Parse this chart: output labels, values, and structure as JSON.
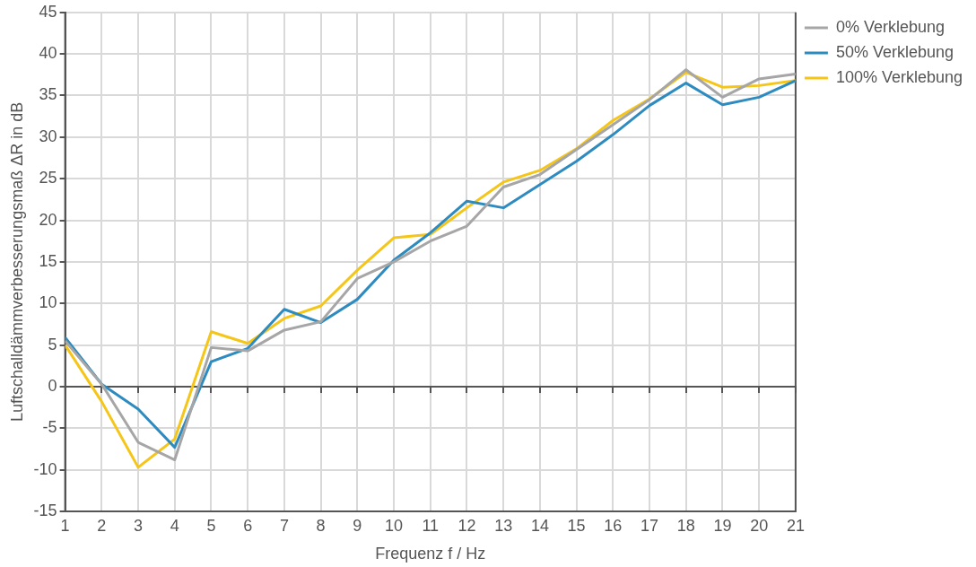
{
  "chart_data": {
    "type": "line",
    "xlabel": "Frequenz f / Hz",
    "ylabel": "Luftschalldämmverbesserungsmaß ΔR in dB",
    "x": [
      1,
      2,
      3,
      4,
      5,
      6,
      7,
      8,
      9,
      10,
      11,
      12,
      13,
      14,
      15,
      16,
      17,
      18,
      19,
      20,
      21
    ],
    "xlim": [
      1,
      21
    ],
    "xticks": [
      1,
      2,
      3,
      4,
      5,
      6,
      7,
      8,
      9,
      10,
      11,
      12,
      13,
      14,
      15,
      16,
      17,
      18,
      19,
      20,
      21
    ],
    "ylim": [
      -15,
      45
    ],
    "yticks": [
      -15,
      -10,
      -5,
      0,
      5,
      10,
      15,
      20,
      25,
      30,
      35,
      40,
      45
    ],
    "grid": true,
    "legend": "right",
    "marker": "none",
    "line_style": "solid",
    "series": [
      {
        "name": "0% Verklebung",
        "color": "#a6a6a6",
        "values": [
          5.5,
          0.3,
          -6.7,
          -8.8,
          4.7,
          4.3,
          6.8,
          7.8,
          13,
          15,
          17.5,
          19.3,
          24,
          25.5,
          28.5,
          31.5,
          34.5,
          38.1,
          34.8,
          37,
          37.6
        ]
      },
      {
        "name": "50% Verklebung",
        "color": "#2e8bc0",
        "values": [
          5.9,
          0.3,
          -2.7,
          -7.3,
          3,
          4.6,
          9.3,
          7.7,
          10.5,
          15.2,
          18.5,
          22.3,
          21.5,
          24.3,
          27.1,
          30.3,
          33.8,
          36.5,
          33.9,
          34.8,
          36.8
        ]
      },
      {
        "name": "100% Verklebung",
        "color": "#f5c518",
        "values": [
          5,
          -1.8,
          -9.7,
          -6.3,
          6.6,
          5.2,
          8.2,
          9.7,
          14,
          17.9,
          18.3,
          21.5,
          24.6,
          26,
          28.6,
          32,
          34.6,
          37.8,
          36,
          36.2,
          36.8
        ]
      }
    ]
  }
}
